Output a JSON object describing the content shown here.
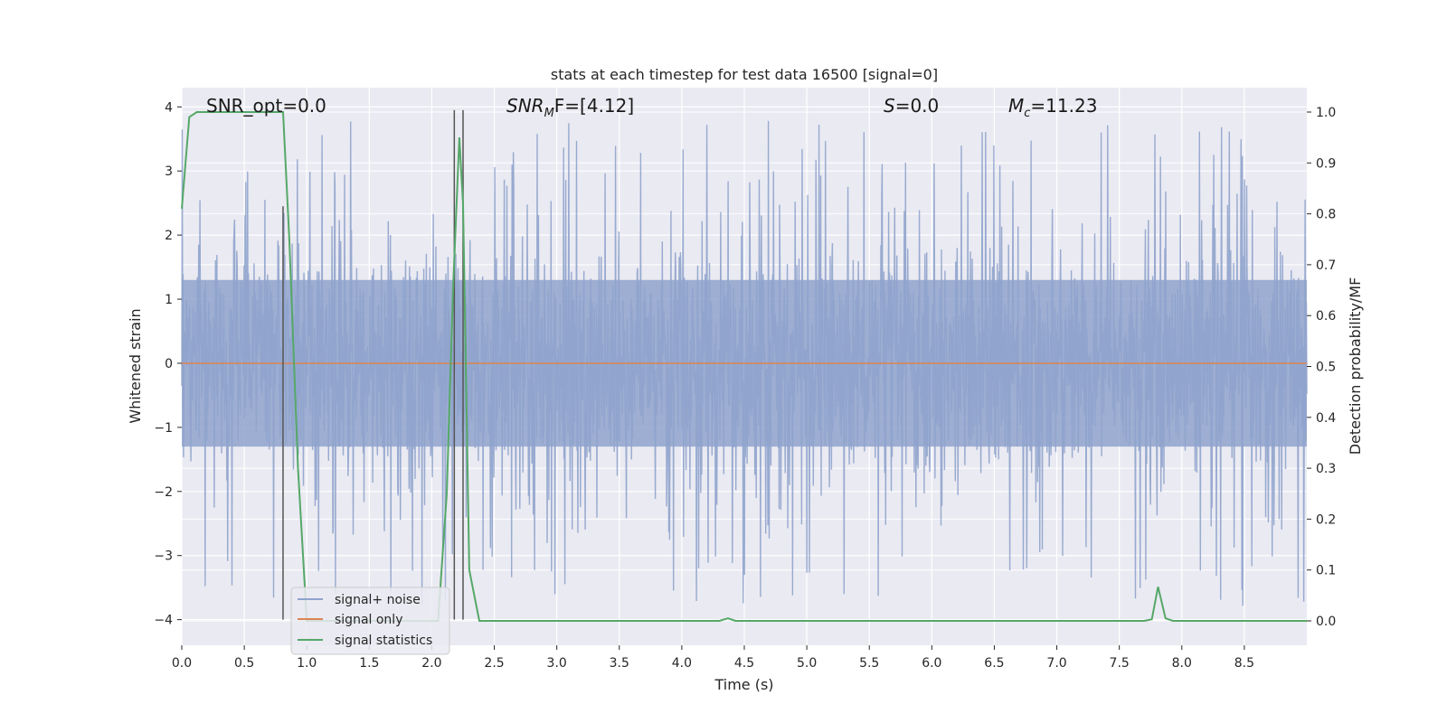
{
  "chart_data": {
    "type": "line",
    "title": "stats at each timestep for test data 16500 [signal=0]",
    "xlabel": "Time (s)",
    "ylabel_left": "Whitened strain",
    "ylabel_right": "Detection probability/MF",
    "xlim": [
      0,
      9.0
    ],
    "ylim_left": [
      -4.4,
      4.3
    ],
    "ylim_right": [
      0.0,
      1.0
    ],
    "x_ticks": [
      0.0,
      0.5,
      1.0,
      1.5,
      2.0,
      2.5,
      3.0,
      3.5,
      4.0,
      4.5,
      5.0,
      5.5,
      6.0,
      6.5,
      7.0,
      7.5,
      8.0,
      8.5
    ],
    "x_tick_labels": [
      "0.0",
      "0.5",
      "1.0",
      "1.5",
      "2.0",
      "2.5",
      "3.0",
      "3.5",
      "4.0",
      "4.5",
      "5.0",
      "5.5",
      "6.0",
      "6.5",
      "7.0",
      "7.5",
      "8.0",
      "8.5"
    ],
    "y_left_ticks": [
      4,
      3,
      2,
      1,
      0,
      -1,
      -2,
      -3,
      -4
    ],
    "y_left_tick_labels": [
      "4",
      "3",
      "2",
      "1",
      "0",
      "−1",
      "−2",
      "−3",
      "−4"
    ],
    "y_right_ticks": [
      1.0,
      0.9,
      0.8,
      0.7,
      0.6,
      0.5,
      0.4,
      0.3,
      0.2,
      0.1,
      0.0
    ],
    "y_right_tick_labels": [
      "1.0",
      "0.9",
      "0.8",
      "0.7",
      "0.6",
      "0.5",
      "0.4",
      "0.3",
      "0.2",
      "0.1",
      "0.0"
    ],
    "grid": true,
    "legend_position": "lower-left",
    "annotations": {
      "snr_opt": "SNR_opt=0.0",
      "snr_mf_main": "SNR",
      "snr_mf_sub": "M",
      "snr_mf_rest": "F=[4.12]",
      "s_main": "S",
      "s_rest": "=0.0",
      "mc_main": "M",
      "mc_sub": "c",
      "mc_rest": "=11.23"
    },
    "vertical_markers": [
      {
        "x": 0.81,
        "y_top": 2.45,
        "y_bottom": -4.0
      },
      {
        "x": 2.18,
        "y_top": 3.95,
        "y_bottom": -4.0
      },
      {
        "x": 2.25,
        "y_top": 3.95,
        "y_bottom": -4.0
      }
    ],
    "series": [
      {
        "name": "signal+ noise",
        "color": "#8fa3cc",
        "axis": "left",
        "description_stats": {
          "amplitude_envelope_upper": 2.3,
          "amplitude_envelope_lower": -2.0,
          "peak_max": 3.95,
          "peak_min": -4.0
        }
      },
      {
        "name": "signal only",
        "color": "#dd8452",
        "axis": "left",
        "x": [
          0.0,
          9.0
        ],
        "y": [
          0.0,
          0.0
        ]
      },
      {
        "name": "signal statistics",
        "color": "#55a868",
        "axis": "right",
        "x": [
          0.0,
          0.06,
          0.12,
          0.2,
          0.3,
          0.4,
          0.5,
          0.6,
          0.7,
          0.81,
          0.86,
          0.93,
          1.0,
          1.1,
          1.3,
          1.5,
          1.7,
          1.9,
          2.05,
          2.12,
          2.17,
          2.22,
          2.25,
          2.3,
          2.38,
          2.5,
          3.0,
          3.5,
          4.0,
          4.3,
          4.37,
          4.43,
          4.5,
          5.0,
          6.0,
          7.0,
          7.5,
          7.7,
          7.76,
          7.81,
          7.87,
          7.93,
          8.0,
          8.5,
          9.0
        ],
        "y": [
          0.81,
          0.99,
          1.0,
          1.0,
          1.0,
          1.0,
          1.0,
          1.0,
          1.0,
          1.0,
          0.75,
          0.3,
          0.0,
          0.0,
          0.0,
          0.0,
          0.0,
          0.0,
          0.0,
          0.25,
          0.65,
          0.95,
          0.82,
          0.1,
          0.0,
          0.0,
          0.0,
          0.0,
          0.0,
          0.0,
          0.005,
          0.0,
          0.0,
          0.0,
          0.0,
          0.0,
          0.0,
          0.0,
          0.003,
          0.067,
          0.005,
          0.0,
          0.0,
          0.0,
          0.0
        ]
      }
    ]
  }
}
